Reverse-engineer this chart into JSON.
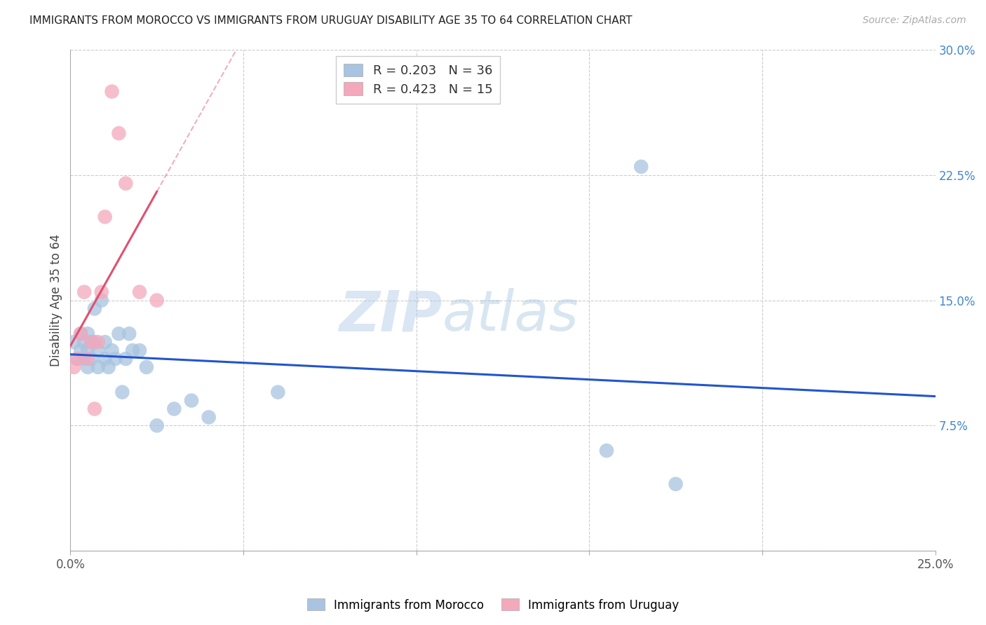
{
  "title": "IMMIGRANTS FROM MOROCCO VS IMMIGRANTS FROM URUGUAY DISABILITY AGE 35 TO 64 CORRELATION CHART",
  "source": "Source: ZipAtlas.com",
  "ylabel": "Disability Age 35 to 64",
  "xlim": [
    0.0,
    0.25
  ],
  "ylim": [
    0.0,
    0.3
  ],
  "morocco_R": 0.203,
  "morocco_N": 36,
  "uruguay_R": 0.423,
  "uruguay_N": 15,
  "morocco_color": "#a8c4e0",
  "uruguay_color": "#f4a8bc",
  "morocco_line_color": "#2255cc",
  "uruguay_line_color": "#e05070",
  "watermark_zip": "ZIP",
  "watermark_atlas": "atlas",
  "morocco_x": [
    0.001,
    0.002,
    0.003,
    0.003,
    0.004,
    0.004,
    0.005,
    0.005,
    0.005,
    0.006,
    0.006,
    0.007,
    0.007,
    0.008,
    0.008,
    0.009,
    0.01,
    0.01,
    0.011,
    0.012,
    0.013,
    0.014,
    0.015,
    0.016,
    0.017,
    0.018,
    0.02,
    0.022,
    0.025,
    0.03,
    0.035,
    0.04,
    0.06,
    0.155,
    0.175,
    0.165
  ],
  "morocco_y": [
    0.125,
    0.115,
    0.12,
    0.13,
    0.115,
    0.125,
    0.11,
    0.12,
    0.13,
    0.115,
    0.125,
    0.145,
    0.125,
    0.11,
    0.12,
    0.15,
    0.125,
    0.115,
    0.11,
    0.12,
    0.115,
    0.13,
    0.095,
    0.115,
    0.13,
    0.12,
    0.12,
    0.11,
    0.075,
    0.085,
    0.09,
    0.08,
    0.095,
    0.06,
    0.04,
    0.23
  ],
  "uruguay_x": [
    0.001,
    0.002,
    0.003,
    0.004,
    0.005,
    0.006,
    0.007,
    0.008,
    0.009,
    0.01,
    0.012,
    0.014,
    0.016,
    0.02,
    0.025
  ],
  "uruguay_y": [
    0.11,
    0.115,
    0.13,
    0.155,
    0.115,
    0.125,
    0.085,
    0.125,
    0.155,
    0.2,
    0.275,
    0.25,
    0.22,
    0.155,
    0.15
  ]
}
